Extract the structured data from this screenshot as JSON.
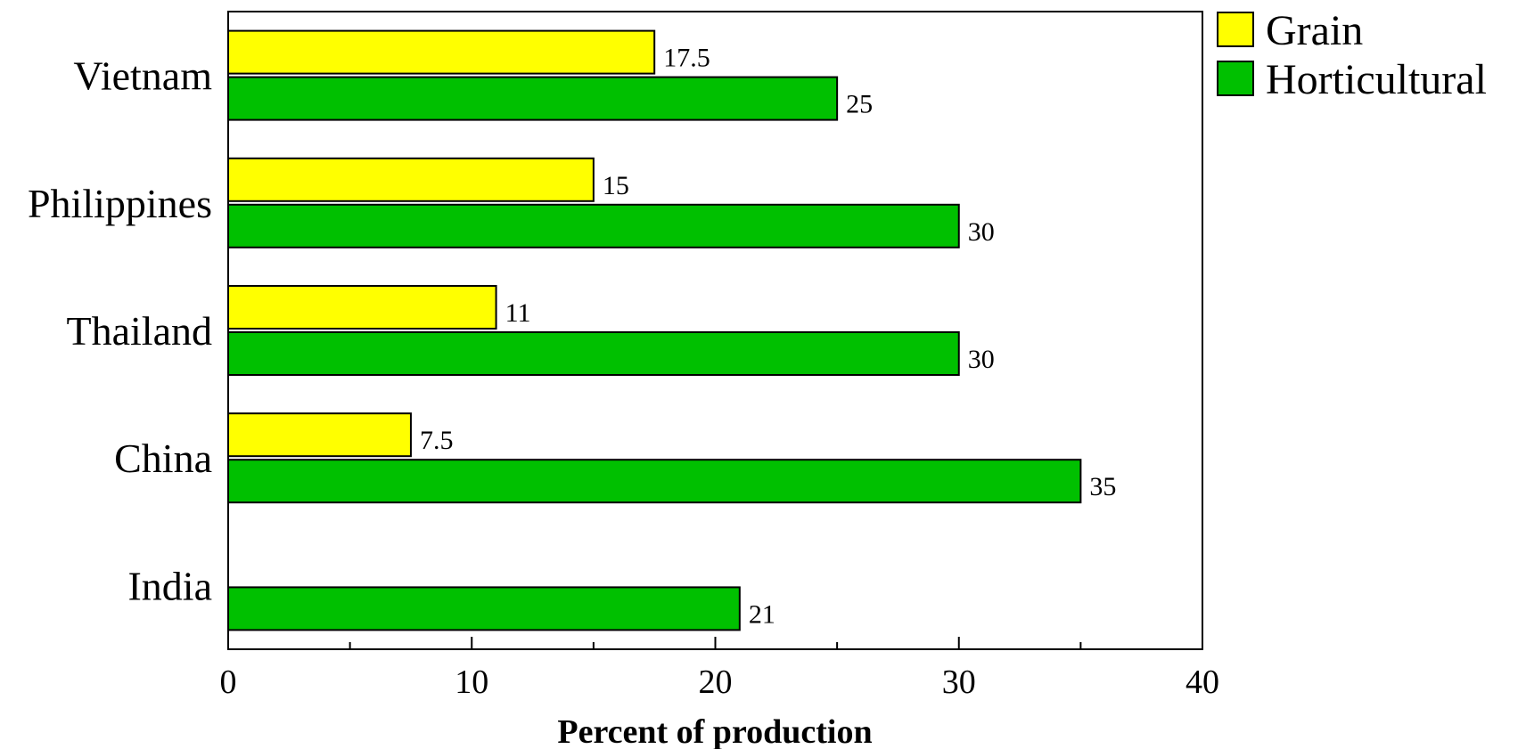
{
  "chart_data": {
    "type": "bar",
    "orientation": "horizontal",
    "categories": [
      "India",
      "China",
      "Thailand",
      "Philippines",
      "Vietnam"
    ],
    "series": [
      {
        "name": "Grain",
        "color": "#ffff00",
        "values": [
          null,
          7.5,
          11,
          15,
          17.5
        ]
      },
      {
        "name": "Horticultural",
        "color": "#00c000",
        "values": [
          21,
          35,
          30,
          30,
          25
        ]
      }
    ],
    "value_labels": {
      "Grain": [
        "",
        "7.5",
        "11",
        "15",
        "17.5"
      ],
      "Horticultural": [
        "21",
        "35",
        "30",
        "30",
        "25"
      ]
    },
    "title": "",
    "xlabel": "Percent of production",
    "ylabel": "",
    "xlim": [
      0,
      40
    ],
    "x_ticks": [
      0,
      10,
      20,
      30,
      40
    ],
    "x_minor_step": 5,
    "grid": false,
    "legend_position": "top-right outside plot"
  }
}
